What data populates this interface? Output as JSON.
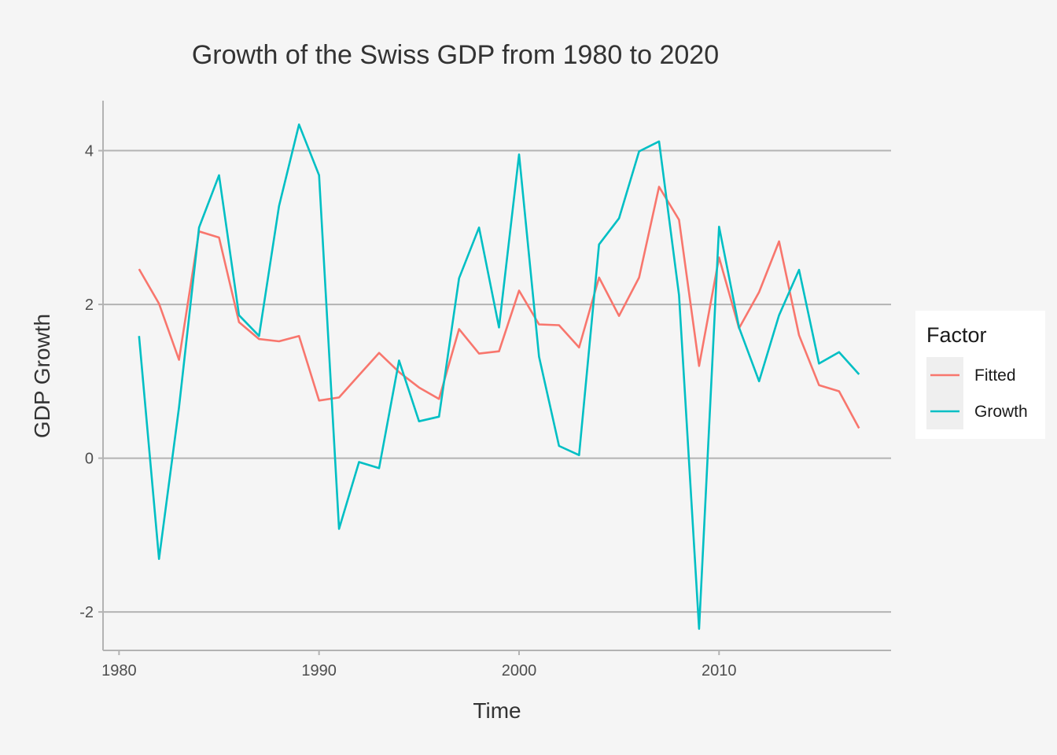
{
  "chart_data": {
    "type": "line",
    "title": "Growth of the Swiss GDP from 1980 to 2020",
    "xlabel": "Time",
    "ylabel": "GDP Growth",
    "xlim": [
      1979.2,
      2018.6
    ],
    "ylim": [
      -2.5,
      4.65
    ],
    "x_ticks": [
      {
        "value": 1980,
        "label": "1980"
      },
      {
        "value": 1990,
        "label": "1990"
      },
      {
        "value": 2000,
        "label": "2000"
      },
      {
        "value": 2010,
        "label": "2010"
      }
    ],
    "y_ticks": [
      {
        "value": -2,
        "label": "-2"
      },
      {
        "value": 0,
        "label": "0"
      },
      {
        "value": 2,
        "label": "2"
      },
      {
        "value": 4,
        "label": "4"
      }
    ],
    "grid": "horizontal-major",
    "legend": {
      "title": "Factor",
      "placement": "right"
    },
    "x": [
      1981,
      1982,
      1983,
      1984,
      1985,
      1986,
      1987,
      1988,
      1989,
      1990,
      1991,
      1992,
      1993,
      1994,
      1995,
      1996,
      1997,
      1998,
      1999,
      2000,
      2001,
      2002,
      2003,
      2004,
      2005,
      2006,
      2007,
      2008,
      2009,
      2010,
      2011,
      2012,
      2013,
      2014,
      2015,
      2016,
      2017
    ],
    "series": [
      {
        "name": "Fitted",
        "color": "#f8766d",
        "values": [
          2.46,
          2.01,
          1.28,
          2.95,
          2.87,
          1.77,
          1.55,
          1.52,
          1.59,
          0.75,
          0.79,
          1.08,
          1.37,
          1.12,
          0.92,
          0.77,
          1.68,
          1.36,
          1.39,
          2.18,
          1.74,
          1.73,
          1.44,
          2.35,
          1.85,
          2.35,
          3.53,
          3.1,
          1.2,
          2.61,
          1.69,
          2.16,
          2.82,
          1.6,
          0.95,
          0.87,
          0.39
        ]
      },
      {
        "name": "Growth",
        "color": "#00bfc4",
        "values": [
          1.59,
          -1.31,
          0.66,
          3.0,
          3.68,
          1.86,
          1.59,
          3.28,
          4.34,
          3.68,
          -0.92,
          -0.05,
          -0.13,
          1.27,
          0.48,
          0.54,
          2.34,
          3.0,
          1.7,
          3.95,
          1.32,
          0.16,
          0.04,
          2.78,
          3.12,
          3.99,
          4.12,
          2.12,
          -2.22,
          3.01,
          1.7,
          1.0,
          1.86,
          2.45,
          1.23,
          1.38,
          1.09
        ]
      }
    ]
  }
}
